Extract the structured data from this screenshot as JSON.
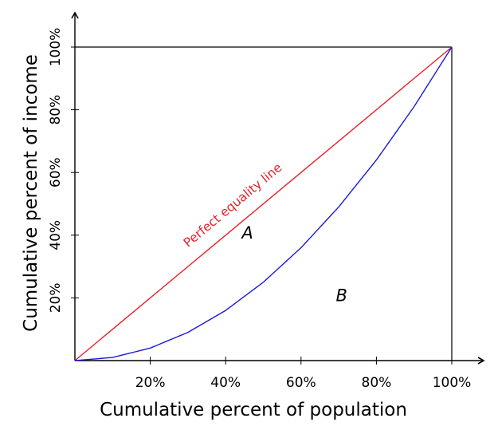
{
  "chart_data": {
    "type": "line",
    "title": "",
    "xlabel": "Cumulative percent of population",
    "ylabel": "Cumulative percent of income",
    "xlim": [
      0,
      100
    ],
    "ylim": [
      0,
      100
    ],
    "grid": false,
    "x_ticks": [
      "20%",
      "40%",
      "60%",
      "80%",
      "100%"
    ],
    "y_ticks": [
      "20%",
      "40%",
      "60%",
      "80%",
      "100%"
    ],
    "series": [
      {
        "name": "Perfect equality line",
        "color": "#e8202a",
        "x": [
          0,
          100
        ],
        "y": [
          0,
          100
        ]
      },
      {
        "color": "#1a1adc",
        "x": [
          0,
          10,
          20,
          30,
          40,
          50,
          60,
          70,
          80,
          90,
          100
        ],
        "y": [
          0,
          1,
          4,
          9,
          16,
          25,
          36,
          49,
          64,
          81,
          100
        ]
      }
    ],
    "annotations": [
      {
        "text": "A",
        "x": 50,
        "y": 40
      },
      {
        "text": "B",
        "x": 75,
        "y": 20
      }
    ]
  }
}
